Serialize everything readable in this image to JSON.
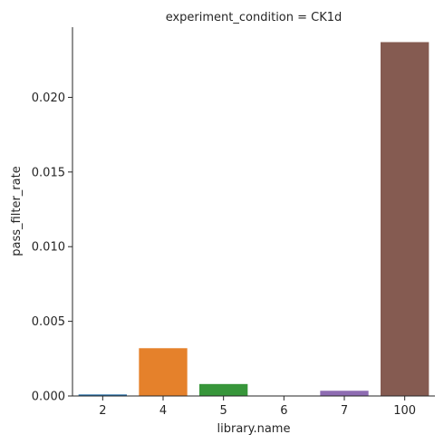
{
  "chart_data": {
    "type": "bar",
    "title": "experiment_condition = CK1d",
    "xlabel": "library.name",
    "ylabel": "pass_filter_rate",
    "categories": [
      "2",
      "4",
      "5",
      "6",
      "7",
      "100"
    ],
    "values": [
      0.0001,
      0.0032,
      0.0008,
      0.0,
      0.00035,
      0.0237
    ],
    "colors": [
      "#1f77b4",
      "#ff7f0e",
      "#2ca02c",
      "#d62728",
      "#9467bd",
      "#8c564b"
    ],
    "bar_alpha_color_override": [
      "#1f6aa5",
      "#e5812b",
      "#37963a",
      "#c74a4a",
      "#8e6cb2",
      "#855b51"
    ],
    "ylim": [
      0,
      0.0247
    ],
    "yticks": [
      0.0,
      0.005,
      0.01,
      0.015,
      0.02
    ],
    "ytick_labels": [
      "0.000",
      "0.005",
      "0.010",
      "0.015",
      "0.020"
    ],
    "grid": false,
    "legend": "none"
  }
}
